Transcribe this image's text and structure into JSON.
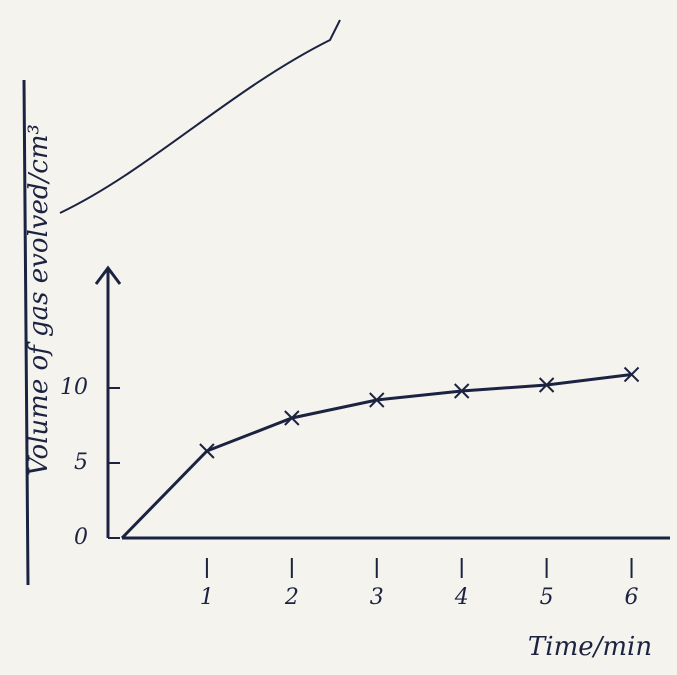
{
  "chart_data": {
    "type": "line",
    "x_label": "Time/min",
    "y_label": "Volume of gas evolved/cm³",
    "x": [
      0,
      1,
      2,
      3,
      4,
      5,
      6
    ],
    "series": [
      {
        "color": "#1c2340",
        "values": [
          0,
          5.8,
          8,
          9.2,
          9.8,
          10.2,
          10.9
        ]
      }
    ],
    "xlim": [
      0,
      6.5
    ],
    "ylim": [
      0,
      18
    ],
    "xticks": [
      1,
      2,
      3,
      4,
      5,
      6
    ],
    "yticks": [
      0,
      5,
      10
    ],
    "marker": "x"
  }
}
